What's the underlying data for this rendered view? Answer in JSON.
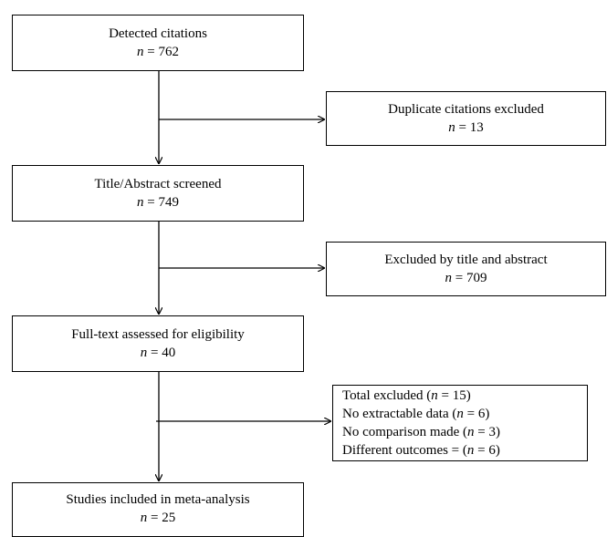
{
  "boxes": {
    "detected": {
      "label": "Detected citations",
      "n_label": "n",
      "n_value": "= 762"
    },
    "duplicate": {
      "label": "Duplicate citations excluded",
      "n_label": "n",
      "n_value": "= 13"
    },
    "title_abstract": {
      "label": "Title/Abstract screened",
      "n_label": "n",
      "n_value": "= 749"
    },
    "excluded_ta": {
      "label": "Excluded by title and abstract",
      "n_label": "n",
      "n_value": "= 709"
    },
    "fulltext": {
      "label": "Full-text assessed for eligibility",
      "n_label": "n",
      "n_value": "= 40"
    },
    "total_excluded": {
      "lines": [
        {
          "pre": "Total excluded (",
          "n": "n",
          "post": " = 15)"
        },
        {
          "pre": "No extractable data (",
          "n": "n",
          "post": " = 6)"
        },
        {
          "pre": "No comparison made (",
          "n": "n",
          "post": " = 3)"
        },
        {
          "pre": "Different outcomes = (",
          "n": "n",
          "post": " = 6)"
        }
      ]
    },
    "included": {
      "label": "Studies included in meta-analysis",
      "n_label": "n",
      "n_value": "= 25"
    }
  },
  "colors": {
    "line": "#000000",
    "background": "#ffffff"
  }
}
